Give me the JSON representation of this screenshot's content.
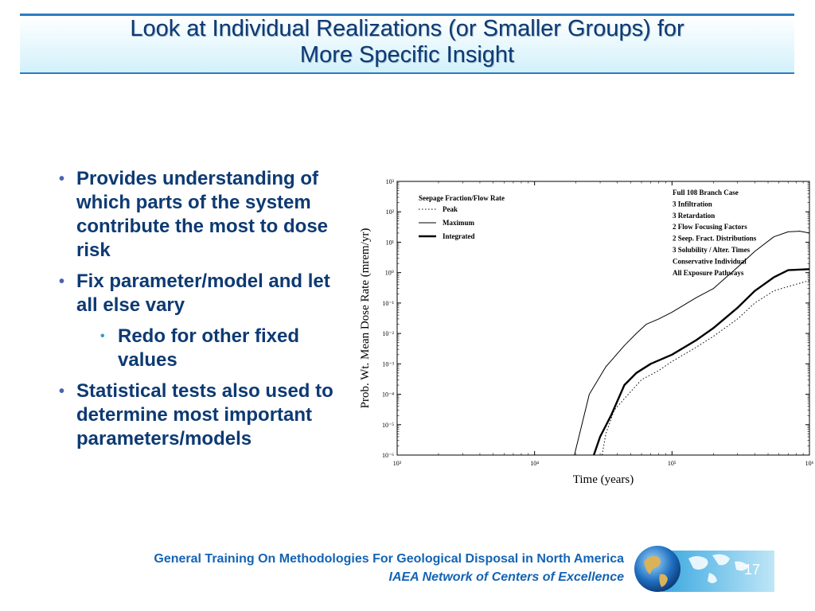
{
  "slide": {
    "title_line1": "Look at Individual Realizations (or Smaller Groups) for",
    "title_line2": "More Specific Insight",
    "bullets": [
      "Provides understanding of which parts of the system contribute the most to dose risk",
      "Fix parameter/model and let all else vary",
      "Redo for other fixed values",
      "Statistical tests also used to determine most important parameters/models"
    ],
    "footer_line1": "General Training On Methodologies For Geological Disposal in North America",
    "footer_line2": "IAEA Network of Centers of Excellence",
    "page_number": "17",
    "colors": {
      "title": "#0d3a73",
      "accent": "#2a7dc0",
      "footer": "#1464b4"
    }
  },
  "chart_data": {
    "type": "line",
    "xlabel": "Time (years)",
    "ylabel": "Prob. Wt. Mean Dose Rate (mrem/yr)",
    "x_scale": "log",
    "y_scale": "log",
    "xlim": [
      1000,
      1000000
    ],
    "ylim": [
      1e-06,
      1000
    ],
    "x_ticks": [
      "10³",
      "10⁴",
      "10⁵",
      "10⁶"
    ],
    "y_ticks": [
      "10⁻⁶",
      "10⁻⁵",
      "10⁻⁴",
      "10⁻³",
      "10⁻²",
      "10⁻¹",
      "10⁰",
      "10¹",
      "10²",
      "10³"
    ],
    "legend_title": "Seepage Fraction/Flow Rate",
    "legend_position": "top-left",
    "annotation": [
      "Full 108 Branch Case",
      "3 Infiltration",
      "3 Retardation",
      "2 Flow Focusing Factors",
      "2 Seep. Fract. Distributions",
      "3 Solubility / Alter. Times",
      "Conservative Individual",
      "All Exposure Pathways"
    ],
    "series": [
      {
        "name": "Peak",
        "style": "dotted",
        "points": [
          [
            31000,
            1e-06
          ],
          [
            33000,
            5e-06
          ],
          [
            38000,
            3e-05
          ],
          [
            46000,
            8e-05
          ],
          [
            60000,
            0.0003
          ],
          [
            80000,
            0.0006
          ],
          [
            100000,
            0.0012
          ],
          [
            150000,
            0.0035
          ],
          [
            200000,
            0.008
          ],
          [
            300000,
            0.03
          ],
          [
            400000,
            0.1
          ],
          [
            550000,
            0.25
          ],
          [
            700000,
            0.35
          ],
          [
            1000000,
            0.55
          ]
        ]
      },
      {
        "name": "Maximum",
        "style": "solid-thin",
        "points": [
          [
            19500,
            1e-06
          ],
          [
            25000,
            0.0001
          ],
          [
            33000,
            0.0008
          ],
          [
            45000,
            0.004
          ],
          [
            55000,
            0.01
          ],
          [
            65000,
            0.02
          ],
          [
            80000,
            0.03
          ],
          [
            100000,
            0.05
          ],
          [
            150000,
            0.15
          ],
          [
            200000,
            0.3
          ],
          [
            300000,
            1.5
          ],
          [
            400000,
            5
          ],
          [
            550000,
            15
          ],
          [
            700000,
            22
          ],
          [
            850000,
            23
          ],
          [
            1000000,
            20
          ]
        ]
      },
      {
        "name": "Integrated",
        "style": "solid-thick",
        "points": [
          [
            27000,
            1e-06
          ],
          [
            30000,
            4e-06
          ],
          [
            36000,
            2e-05
          ],
          [
            45000,
            0.0002
          ],
          [
            55000,
            0.0005
          ],
          [
            70000,
            0.001
          ],
          [
            100000,
            0.002
          ],
          [
            150000,
            0.006
          ],
          [
            200000,
            0.015
          ],
          [
            300000,
            0.07
          ],
          [
            400000,
            0.25
          ],
          [
            550000,
            0.7
          ],
          [
            700000,
            1.2
          ],
          [
            1000000,
            1.3
          ]
        ]
      }
    ]
  }
}
